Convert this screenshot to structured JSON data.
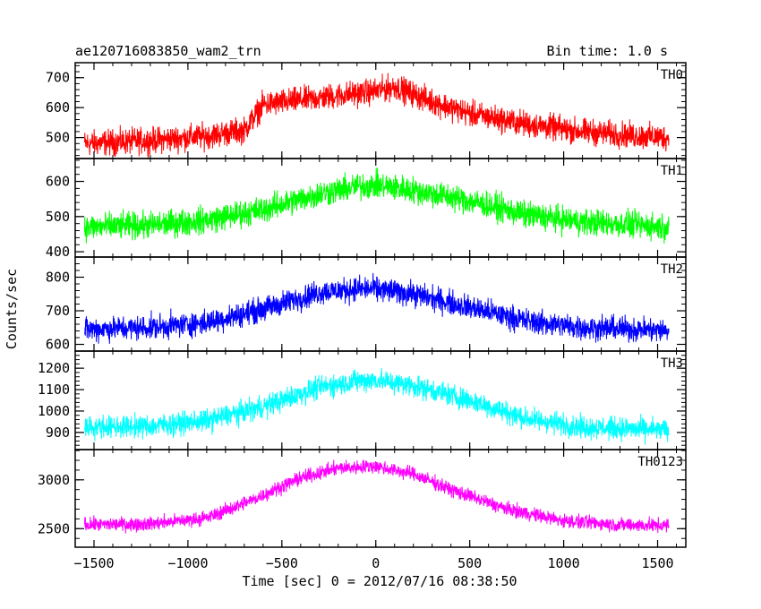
{
  "chart_data": {
    "type": "line",
    "title": "ae120716083850_wam2_trn",
    "subtitle": "Bin time: 1.0 s",
    "xlabel": "Time [sec] 0 = 2012/07/16 08:38:50",
    "ylabel": "Counts/sec",
    "xlim": [
      -1600,
      1650
    ],
    "x_range": [
      -1550,
      1560
    ],
    "x_ticks": [
      "−1500",
      "−1000",
      "−500",
      "0",
      "500",
      "1000",
      "1500"
    ],
    "x_tick_values": [
      -1500,
      -1000,
      -500,
      0,
      500,
      1000,
      1500
    ],
    "grid": false,
    "legend": "none",
    "panels": [
      {
        "name": "TH0",
        "color": "#ff0000",
        "ylim": [
          430,
          750
        ],
        "y_ticks": [
          "700",
          "600",
          "500"
        ],
        "y_tick_values": [
          700,
          600,
          500
        ],
        "x": [
          -1550,
          -1200,
          -900,
          -700,
          -600,
          -400,
          -200,
          0,
          100,
          300,
          500,
          800,
          1100,
          1400,
          1560
        ],
        "y": [
          480,
          490,
          505,
          525,
          610,
          625,
          640,
          655,
          670,
          620,
          580,
          545,
          520,
          505,
          500
        ],
        "noise_amplitude": 45
      },
      {
        "name": "TH1",
        "color": "#00ff00",
        "ylim": [
          385,
          665
        ],
        "y_ticks": [
          "600",
          "500",
          "400"
        ],
        "y_tick_values": [
          600,
          500,
          400
        ],
        "x": [
          -1550,
          -1200,
          -900,
          -600,
          -300,
          -100,
          0,
          200,
          500,
          800,
          1100,
          1400,
          1560
        ],
        "y": [
          470,
          475,
          490,
          520,
          565,
          585,
          590,
          575,
          545,
          505,
          485,
          475,
          470
        ],
        "noise_amplitude": 40
      },
      {
        "name": "TH2",
        "color": "#0000ff",
        "ylim": [
          580,
          860
        ],
        "y_ticks": [
          "800",
          "700",
          "600"
        ],
        "y_tick_values": [
          800,
          700,
          600
        ],
        "x": [
          -1550,
          -1200,
          -900,
          -600,
          -300,
          -100,
          0,
          200,
          500,
          800,
          1100,
          1400,
          1560
        ],
        "y": [
          645,
          650,
          665,
          705,
          755,
          765,
          765,
          750,
          710,
          670,
          650,
          645,
          640
        ],
        "noise_amplitude": 38
      },
      {
        "name": "TH3",
        "color": "#00ffff",
        "ylim": [
          820,
          1280
        ],
        "y_ticks": [
          "1200",
          "1100",
          "1000",
          "900"
        ],
        "y_tick_values": [
          1200,
          1100,
          1000,
          900
        ],
        "x": [
          -1550,
          -1200,
          -900,
          -600,
          -300,
          -100,
          0,
          200,
          500,
          800,
          1100,
          1400,
          1560
        ],
        "y": [
          925,
          930,
          955,
          1020,
          1110,
          1140,
          1145,
          1120,
          1050,
          965,
          925,
          915,
          910
        ],
        "noise_amplitude": 55
      },
      {
        "name": "TH0123",
        "color": "#ff00ff",
        "ylim": [
          2310,
          3310
        ],
        "y_ticks": [
          "3000",
          "2500"
        ],
        "y_tick_values": [
          3000,
          2500
        ],
        "x": [
          -1550,
          -1200,
          -900,
          -650,
          -400,
          -200,
          0,
          200,
          400,
          700,
          1000,
          1300,
          1560
        ],
        "y": [
          2540,
          2550,
          2610,
          2800,
          3020,
          3120,
          3140,
          3060,
          2900,
          2700,
          2580,
          2540,
          2530
        ],
        "noise_amplitude": 75
      }
    ]
  }
}
